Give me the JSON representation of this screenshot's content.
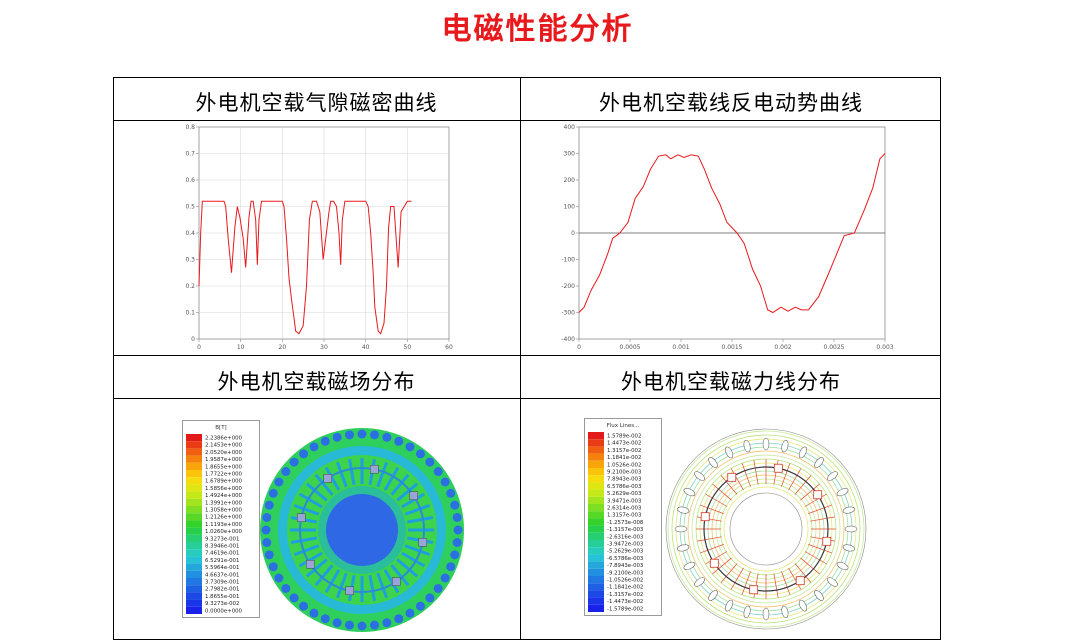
{
  "page_title": "电磁性能分析",
  "panels": {
    "airgap_caption": "外电机空载气隙磁密曲线",
    "backemf_caption": "外电机空载线反电动势曲线",
    "field_caption": "外电机空载磁场分布",
    "fluxlines_caption": "外电机空载磁力线分布"
  },
  "colors": {
    "title": "#e8191c",
    "curve": "#e8191c"
  },
  "chart_data": [
    {
      "type": "line",
      "title": "",
      "xlabel": "",
      "ylabel": "",
      "xlim": [
        0,
        60
      ],
      "ylim": [
        0,
        0.8
      ],
      "x_ticks": [
        "0",
        "10",
        "20",
        "30",
        "40",
        "50",
        "60"
      ],
      "y_ticks": [
        "0",
        "0.1",
        "0.2",
        "0.3",
        "0.4",
        "0.5",
        "0.6",
        "0.7",
        "0.8"
      ],
      "grid": true,
      "series": [
        {
          "x": [
            0,
            0.4,
            0.8,
            1.5,
            6,
            6.4,
            7,
            7.8,
            8.6,
            9.2,
            9.8,
            10.6,
            11.2,
            12,
            12.5,
            13,
            13.6,
            14,
            14.4,
            15,
            20,
            20.4,
            21,
            21.6,
            22.2,
            22.8,
            23.2,
            24,
            25,
            25.8,
            26.5,
            27.2,
            28.2,
            29,
            29.8,
            31.2,
            31.6,
            32.3,
            33,
            33.6,
            34,
            34.4,
            35,
            40,
            40.6,
            41.2,
            41.8,
            42.2,
            43,
            43.6,
            44.4,
            45,
            45.5,
            46,
            46.8,
            47.4,
            47.8,
            48.5,
            50,
            50.2,
            51
          ],
          "y": [
            0.2,
            0.4,
            0.52,
            0.52,
            0.52,
            0.5,
            0.38,
            0.25,
            0.42,
            0.5,
            0.46,
            0.38,
            0.27,
            0.46,
            0.52,
            0.52,
            0.45,
            0.28,
            0.45,
            0.52,
            0.52,
            0.5,
            0.38,
            0.23,
            0.15,
            0.08,
            0.03,
            0.02,
            0.05,
            0.2,
            0.45,
            0.52,
            0.52,
            0.48,
            0.3,
            0.48,
            0.52,
            0.52,
            0.5,
            0.4,
            0.28,
            0.45,
            0.52,
            0.52,
            0.5,
            0.4,
            0.25,
            0.12,
            0.03,
            0.02,
            0.06,
            0.2,
            0.42,
            0.5,
            0.5,
            0.36,
            0.27,
            0.48,
            0.52,
            0.52,
            0.52
          ]
        }
      ]
    },
    {
      "type": "line",
      "title": "",
      "xlabel": "",
      "ylabel": "",
      "xlim": [
        0,
        0.003
      ],
      "ylim": [
        -400,
        400
      ],
      "x_ticks": [
        "0",
        "0.0005",
        "0.001",
        "0.0015",
        "0.002",
        "0.0025",
        "0.003"
      ],
      "y_ticks": [
        "400",
        "300",
        "200",
        "100",
        "0",
        "-100",
        "-200",
        "-300",
        "-400"
      ],
      "grid": false,
      "zero_line": true,
      "series": [
        {
          "x": [
            0,
            5e-05,
            0.00012,
            0.0002,
            0.00028,
            0.00033,
            0.0004,
            0.00048,
            0.00055,
            0.00063,
            0.0007,
            0.00078,
            0.00085,
            0.0009,
            0.00097,
            0.00103,
            0.0011,
            0.00117,
            0.00123,
            0.0013,
            0.00138,
            0.00145,
            0.00155,
            0.00162,
            0.0017,
            0.00178,
            0.00185,
            0.0019,
            0.00198,
            0.00205,
            0.00212,
            0.00218,
            0.00225,
            0.00235,
            0.00245,
            0.00252,
            0.0026,
            0.0027,
            0.0028,
            0.00288,
            0.00295,
            0.003
          ],
          "y": [
            -300,
            -280,
            -215,
            -160,
            -80,
            -20,
            0,
            40,
            130,
            175,
            240,
            290,
            295,
            280,
            295,
            285,
            295,
            290,
            240,
            170,
            110,
            40,
            0,
            -40,
            -135,
            -200,
            -290,
            -300,
            -280,
            -295,
            -280,
            -290,
            -290,
            -240,
            -150,
            -85,
            -10,
            0,
            90,
            170,
            280,
            300
          ]
        }
      ]
    }
  ],
  "field_legend": {
    "title": "B[T]",
    "values": [
      "2.2386e+000",
      "2.1453e+000",
      "2.0520e+000",
      "1.9587e+000",
      "1.8655e+000",
      "1.7722e+000",
      "1.6789e+000",
      "1.5856e+000",
      "1.4924e+000",
      "1.3991e+000",
      "1.3058e+000",
      "1.2126e+000",
      "1.1193e+000",
      "1.0260e+000",
      "9.3273e-001",
      "8.3946e-001",
      "7.4619e-001",
      "6.5291e-001",
      "5.5964e-001",
      "4.6637e-001",
      "3.7309e-001",
      "2.7982e-001",
      "1.8655e-001",
      "9.3273e-002",
      "0.0000e+000"
    ],
    "colors": [
      "#e21a1a",
      "#ea3c14",
      "#f06010",
      "#f5820c",
      "#f9a50a",
      "#fbc40a",
      "#f6dc0c",
      "#e0e612",
      "#c4e818",
      "#a2e41e",
      "#7ede22",
      "#58d826",
      "#34d22a",
      "#26d04a",
      "#26cf72",
      "#26ce98",
      "#26ccbc",
      "#26c2d8",
      "#24a8dc",
      "#2290e0",
      "#2078e2",
      "#1e60e4",
      "#1c48e6",
      "#1a34e8",
      "#1a22ea"
    ]
  },
  "flux_legend": {
    "title": "Flux Lines...",
    "values": [
      "1.5789e-002",
      "1.4473e-002",
      "1.3157e-002",
      "1.1841e-002",
      "1.0526e-002",
      "9.2100e-003",
      "7.8943e-003",
      "6.5786e-003",
      "5.2629e-003",
      "3.9471e-003",
      "2.6314e-003",
      "1.3157e-003",
      "-1.2573e-008",
      "-1.3157e-003",
      "-2.6316e-003",
      "-3.9472e-003",
      "-5.2629e-003",
      "-6.5786e-003",
      "-7.8943e-003",
      "-9.2100e-003",
      "-1.0526e-002",
      "-1.1841e-002",
      "-1.3157e-002",
      "-1.4473e-002",
      "-1.5789e-002"
    ],
    "colors": [
      "#e21a1a",
      "#ea3c14",
      "#f06010",
      "#f5820c",
      "#f9a50a",
      "#fbc40a",
      "#f6dc0c",
      "#e0e612",
      "#c4e818",
      "#a2e41e",
      "#7ede22",
      "#58d826",
      "#34d22a",
      "#26d04a",
      "#26cf72",
      "#26ce98",
      "#26ccbc",
      "#26c2d8",
      "#24a8dc",
      "#2290e0",
      "#2078e2",
      "#1e60e4",
      "#1c48e6",
      "#1a34e8",
      "#1a22ea"
    ]
  }
}
